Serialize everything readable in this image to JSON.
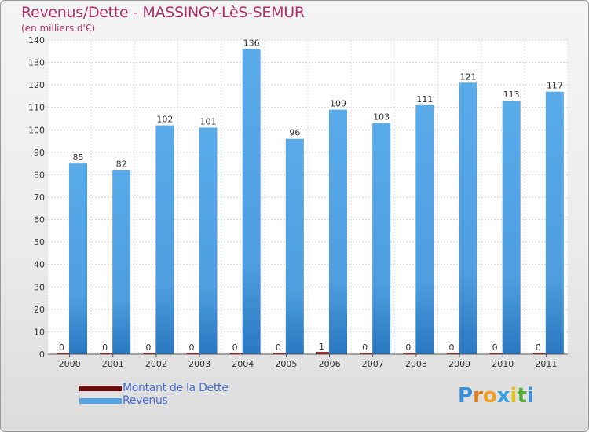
{
  "title": "Revenus/Dette - MASSINGY-LèS-SEMUR",
  "subtitle": "(en milliers d'€)",
  "colors": {
    "revenus": "#55a4e6",
    "revenus_dark": "#2f7fc8",
    "dette": "#7a1010",
    "title": "#b0306a",
    "legend_text": "#4a6fd6"
  },
  "legend": [
    {
      "label": "Montant de la Dette",
      "color": "#6b0d0d"
    },
    {
      "label": "Revenus",
      "color": "#55a4e6"
    }
  ],
  "logo": {
    "letters": [
      "P",
      "r",
      "o",
      "x",
      "i",
      "t",
      "i"
    ],
    "colors": [
      "#3a8fd8",
      "#e07a1a",
      "#f0a020",
      "#3aa0e0",
      "#e0c020",
      "#58b030",
      "#3a8fd8"
    ]
  },
  "chart_data": {
    "type": "bar",
    "categories": [
      "2000",
      "2001",
      "2002",
      "2003",
      "2004",
      "2005",
      "2006",
      "2007",
      "2008",
      "2009",
      "2010",
      "2011"
    ],
    "series": [
      {
        "name": "Montant de la Dette",
        "values": [
          0,
          0,
          0,
          0,
          0,
          0,
          1,
          0,
          0,
          0,
          0,
          0
        ]
      },
      {
        "name": "Revenus",
        "values": [
          85,
          82,
          102,
          101,
          136,
          96,
          109,
          103,
          111,
          121,
          113,
          117
        ]
      }
    ],
    "ylim": [
      0,
      140
    ],
    "yticks": [
      0,
      10,
      20,
      30,
      40,
      50,
      60,
      70,
      80,
      90,
      100,
      110,
      120,
      130,
      140
    ],
    "grid": true
  }
}
